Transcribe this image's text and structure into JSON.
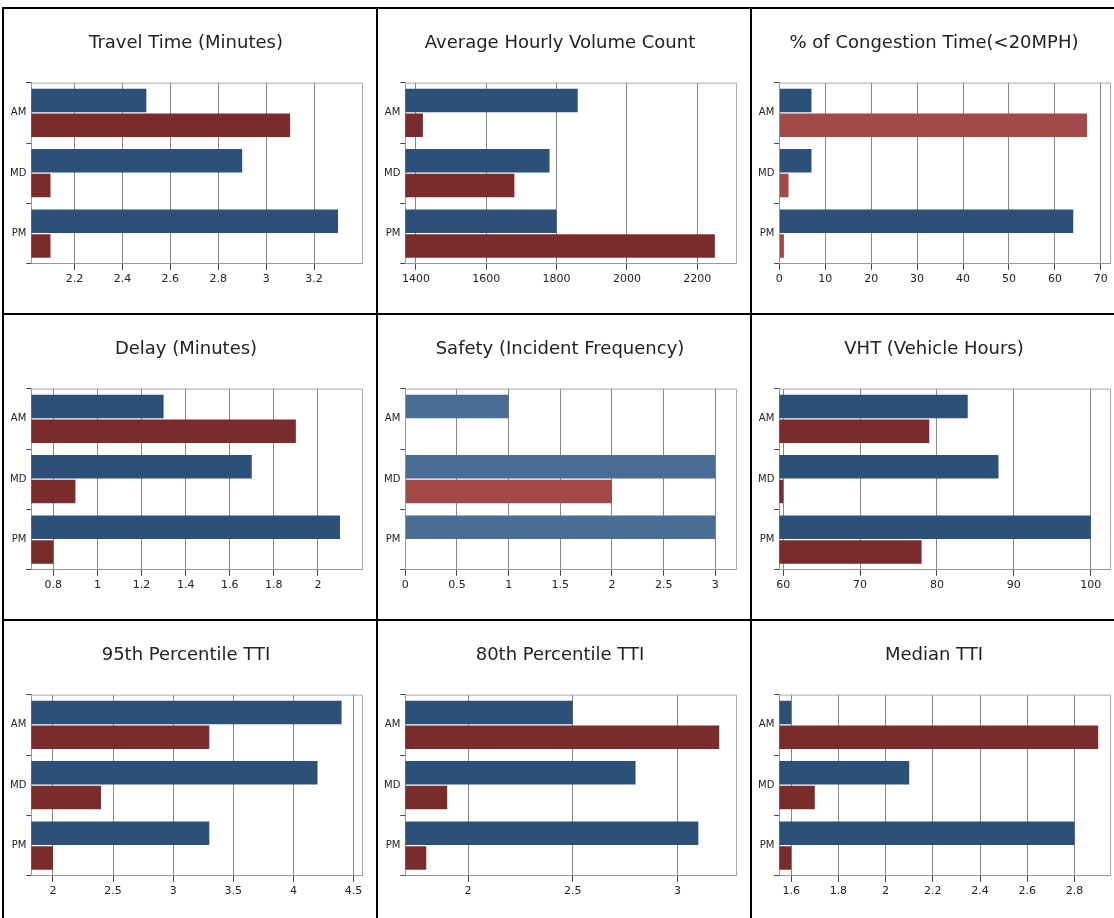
{
  "chart_data": [
    {
      "type": "bar",
      "orientation": "horizontal",
      "title": "Travel Time (Minutes)",
      "categories": [
        "AM",
        "MD",
        "PM"
      ],
      "grid": "x",
      "xlim": [
        2.02,
        3.4
      ],
      "xticks": [
        2.2,
        2.4,
        2.6,
        2.8,
        3,
        3.2
      ],
      "series": [
        {
          "color": "#2c5078",
          "values": [
            2.5,
            2.9,
            3.3
          ]
        },
        {
          "color": "#7a2c2c",
          "values": [
            3.1,
            2.1,
            2.1
          ]
        }
      ]
    },
    {
      "type": "bar",
      "orientation": "horizontal",
      "title": "Average Hourly Volume Count",
      "categories": [
        "AM",
        "MD",
        "PM"
      ],
      "grid": "x",
      "xlim": [
        1370,
        2310
      ],
      "xticks": [
        1400,
        1600,
        1800,
        2000,
        2200
      ],
      "series": [
        {
          "color": "#2c5078",
          "values": [
            1860,
            1780,
            1800
          ]
        },
        {
          "color": "#7a2c2c",
          "values": [
            1420,
            1680,
            2250
          ]
        }
      ]
    },
    {
      "type": "bar",
      "orientation": "horizontal",
      "title": "% of Congestion Time(<20MPH)",
      "categories": [
        "AM",
        "MD",
        "PM"
      ],
      "grid": "x",
      "xlim": [
        0,
        72
      ],
      "xticks": [
        0,
        10,
        20,
        30,
        40,
        50,
        60,
        70
      ],
      "series": [
        {
          "color": "#2c5078",
          "values": [
            7,
            7,
            64
          ]
        },
        {
          "color": "#a24a4a",
          "values": [
            67,
            2,
            1
          ]
        }
      ]
    },
    {
      "type": "bar",
      "orientation": "horizontal",
      "title": "Delay (Minutes)",
      "categories": [
        "AM",
        "MD",
        "PM"
      ],
      "grid": "x",
      "xlim": [
        0.7,
        2.2
      ],
      "xticks": [
        0.8,
        1,
        1.2,
        1.4,
        1.6,
        1.8,
        2
      ],
      "series": [
        {
          "color": "#2c5078",
          "values": [
            1.3,
            1.7,
            2.1
          ]
        },
        {
          "color": "#7a2c2c",
          "values": [
            1.9,
            0.9,
            0.8
          ]
        }
      ]
    },
    {
      "type": "bar",
      "orientation": "horizontal",
      "title": "Safety (Incident Frequency)",
      "categories": [
        "AM",
        "MD",
        "PM"
      ],
      "grid": "x",
      "xlim": [
        0,
        3.2
      ],
      "xticks": [
        0,
        0.5,
        1,
        1.5,
        2,
        2.5,
        3
      ],
      "series": [
        {
          "color": "#4a6d96",
          "values": [
            1,
            3,
            3
          ]
        },
        {
          "color": "#a24a4a",
          "values": [
            0,
            2,
            0
          ]
        }
      ]
    },
    {
      "type": "bar",
      "orientation": "horizontal",
      "title": "VHT (Vehicle Hours)",
      "categories": [
        "AM",
        "MD",
        "PM"
      ],
      "grid": "x",
      "xlim": [
        59.5,
        102.5
      ],
      "xticks": [
        60,
        70,
        80,
        90,
        100
      ],
      "series": [
        {
          "color": "#2c5078",
          "values": [
            84,
            88,
            100
          ]
        },
        {
          "color": "#7a2c2c",
          "values": [
            79,
            60,
            78
          ]
        }
      ]
    },
    {
      "type": "bar",
      "orientation": "horizontal",
      "title": "95th Percentile TTI",
      "categories": [
        "AM",
        "MD",
        "PM"
      ],
      "grid": "x",
      "xlim": [
        1.82,
        4.57
      ],
      "xticks": [
        2,
        2.5,
        3,
        3.5,
        4,
        4.5
      ],
      "series": [
        {
          "color": "#2c5078",
          "values": [
            4.4,
            4.2,
            3.3
          ]
        },
        {
          "color": "#7a2c2c",
          "values": [
            3.3,
            2.4,
            2.0
          ]
        }
      ]
    },
    {
      "type": "bar",
      "orientation": "horizontal",
      "title": "80th Percentile TTI",
      "categories": [
        "AM",
        "MD",
        "PM"
      ],
      "grid": "x",
      "xlim": [
        1.7,
        3.28
      ],
      "xticks": [
        2,
        2.5,
        3
      ],
      "series": [
        {
          "color": "#2c5078",
          "values": [
            2.5,
            2.8,
            3.1
          ]
        },
        {
          "color": "#7a2c2c",
          "values": [
            3.2,
            1.9,
            1.8
          ]
        }
      ]
    },
    {
      "type": "bar",
      "orientation": "horizontal",
      "title": "Median TTI",
      "categories": [
        "AM",
        "MD",
        "PM"
      ],
      "grid": "x",
      "xlim": [
        1.55,
        2.95
      ],
      "xticks": [
        1.6,
        1.8,
        2,
        2.2,
        2.4,
        2.6,
        2.8
      ],
      "series": [
        {
          "color": "#2c5078",
          "values": [
            1.6,
            2.1,
            2.8
          ]
        },
        {
          "color": "#7a2c2c",
          "values": [
            2.9,
            1.7,
            1.6
          ]
        }
      ]
    }
  ]
}
